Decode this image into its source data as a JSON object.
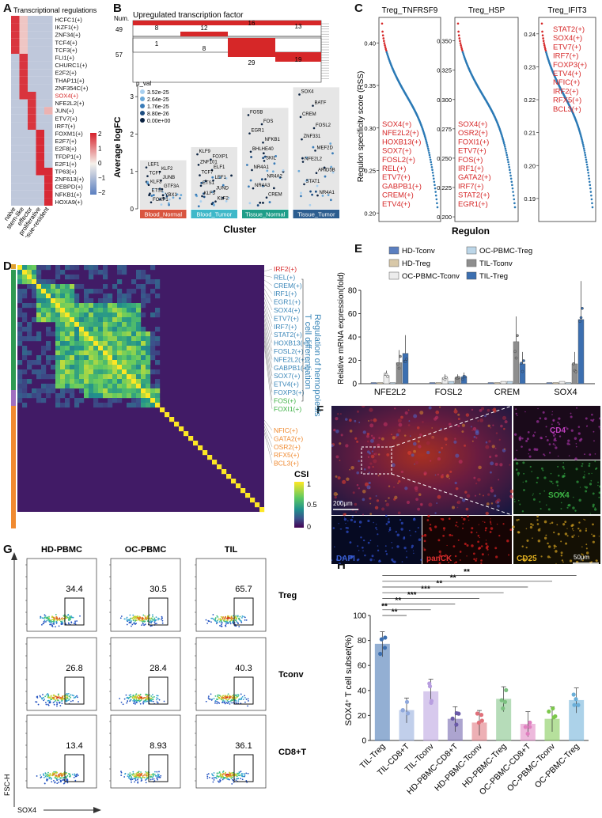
{
  "panels": {
    "A": "A",
    "B": "B",
    "C": "C",
    "D": "D",
    "E": "E",
    "F": "F",
    "G": "G",
    "H": "H"
  },
  "panelA": {
    "title": "Transcriptional regulations",
    "rows": [
      "HCFC1(+)",
      "IKZF1(+)",
      "ZNF34(+)",
      "TCF4(+)",
      "TCF3(+)",
      "FLI1(+)",
      "CHURC1(+)",
      "E2F2(+)",
      "THAP11(+)",
      "ZNF354C(+)",
      "SOX4(+)",
      "NFE2L2(+)",
      "JUN(+)",
      "ETV7(+)",
      "IRF7(+)",
      "FOXM1(+)",
      "E2F7(+)",
      "E2F8(+)",
      "TFDP1(+)",
      "E2F1(+)",
      "TP63(+)",
      "ZNF613(+)",
      "CEBPD(+)",
      "NFKB1(+)",
      "HOXA9(+)"
    ],
    "highlight_row": "SOX4(+)",
    "columns": [
      "naive",
      "stem-like",
      "effector",
      "proliferative",
      "tissue-resident"
    ],
    "legend_ticks": [
      "2",
      "1",
      "0",
      "−1",
      "−2"
    ],
    "colors": {
      "high": "#d6202b",
      "mid": "#f5f0ea",
      "low": "#5b7fc0",
      "highlight": "#d62728"
    }
  },
  "panelB": {
    "title": "Upregulated transcription factor",
    "num_label": "Num.",
    "upset_counts": [
      "8",
      "12",
      "16",
      "13",
      "1",
      "8",
      "29",
      "19"
    ],
    "row_counts": [
      "49",
      "57"
    ],
    "legend_title": "p_val",
    "legend_values": [
      "3.52e-25",
      "2.64e-25",
      "1.76e-25",
      "8.80e-26",
      "0.00e+00"
    ],
    "ylabel": "Average logFC",
    "xlabel": "Cluster",
    "yticks": [
      "0",
      "1",
      "2",
      "3"
    ],
    "clusters": [
      "Blood_Normal",
      "Blood_Tumor",
      "Tissue_Normal",
      "Tissue_Tumor"
    ],
    "cluster_colors": [
      "#d9553f",
      "#3fb8c9",
      "#1f9e89",
      "#2c5d8f"
    ],
    "genes": {
      "c1": [
        "LEF1",
        "KLF2",
        "TCF7",
        "JUNB",
        "KLF3",
        "GTF3A",
        "ETS1",
        "YBX1",
        "FOXP1"
      ],
      "c2": [
        "KLF9",
        "FOXP1",
        "ZNF101",
        "ELF1",
        "TCF7",
        "LEF1",
        "ETS1",
        "JUND",
        "KLF3",
        "KLF2"
      ],
      "c3": [
        "FOSB",
        "FOS",
        "EGR1",
        "NFKB1",
        "BHLHE40",
        "SKIL",
        "NR4A1",
        "NR4A2",
        "NR4A3",
        "CREM"
      ],
      "c4": [
        "SOX4",
        "BATF",
        "CREM",
        "FOSL2",
        "ZNF331",
        "MEF2D",
        "NFE2L2",
        "ARID5B",
        "STAT1",
        "NR4A1"
      ]
    }
  },
  "panelC": {
    "ylabel": "Regulon specificity score (RSS)",
    "xlabel": "Regulon",
    "subplots": [
      {
        "title": "Treg_TNFRSF9",
        "yticks": [
          "0.40",
          "0.35",
          "0.30",
          "0.25",
          "0.20"
        ],
        "ymin": 0.19,
        "ymax": 0.43,
        "labels": [
          "SOX4(+)",
          "NFE2L2(+)",
          "HOXB13(+)",
          "SOX7(+)",
          "FOSL2(+)",
          "REL(+)",
          "ETV7(+)",
          "GABPB1(+)",
          "CREM(+)",
          "ETV4(+)"
        ]
      },
      {
        "title": "Treg_HSP",
        "yticks": [
          "0.350",
          "0.325",
          "0.300",
          "0.275",
          "0.250",
          "0.225",
          "0.200"
        ],
        "ymin": 0.196,
        "ymax": 0.37,
        "labels": [
          "SOX4(+)",
          "OSR2(+)",
          "FOXI1(+)",
          "ETV7(+)",
          "FOS(+)",
          "IRF1(+)",
          "GATA2(+)",
          "IRF7(+)",
          "STAT2(+)",
          "EGR1(+)"
        ]
      },
      {
        "title": "Treg_IFIT3",
        "yticks": [
          "0.24",
          "0.23",
          "0.22",
          "0.21",
          "0.20",
          "0.19"
        ],
        "ymin": 0.183,
        "ymax": 0.245,
        "labels": [
          "STAT2(+)",
          "SOX4(+)",
          "ETV7(+)",
          "IRF7(+)",
          "FOXP3(+)",
          "ETV4(+)",
          "NFIC(+)",
          "IRF2(+)",
          "RFX5(+)",
          "BCL3(+)"
        ]
      }
    ],
    "colors": {
      "point": "#2a79b5",
      "label": "#d62728"
    }
  },
  "panelD": {
    "labels_red": [
      "IRF2(+)"
    ],
    "labels_blue": [
      "REL(+)",
      "CREM(+)",
      "IRF1(+)",
      "EGR1(+)",
      "SOX4(+)",
      "ETV7(+)",
      "IRF7(+)",
      "STAT2(+)",
      "HOXB13(+)",
      "FOSL2(+)",
      "NFE2L2(+)",
      "GABPB1(+)",
      "SOX7(+)",
      "ETV4(+)",
      "FOXP3(+)"
    ],
    "labels_green": [
      "FOS(+)",
      "FOXI1(+)"
    ],
    "labels_orange": [
      "NFIC(+)",
      "GATA2(+)",
      "OSR2(+)",
      "RFX5(+)",
      "BCL3(+)"
    ],
    "side_text1": "T cell differentiation",
    "side_text2": "Regulation of hemopoiesis",
    "legend_title": "CSI",
    "legend_ticks": [
      "1",
      "0.5",
      "0"
    ]
  },
  "panelE": {
    "ylabel": "Relative mRNA expression(fold)",
    "legend": [
      "HD-Tconv",
      "HD-Treg",
      "OC-PBMC-Tconv",
      "OC-PBMC-Treg",
      "TIL-Tconv",
      "TIL-Treg"
    ],
    "colors": [
      "#5b7fc0",
      "#d8c8a8",
      "#ececec",
      "#bcd6e8",
      "#8e8e8e",
      "#3c6fb0"
    ],
    "yticks": [
      "0",
      "20",
      "40",
      "60",
      "80"
    ],
    "ylim": [
      0,
      80
    ],
    "categories": [
      "NFE2L2",
      "FOSL2",
      "CREM",
      "SOX4"
    ],
    "series": [
      {
        "name": "HD-Tconv",
        "values": [
          1,
          1,
          1,
          1
        ]
      },
      {
        "name": "HD-Treg",
        "values": [
          1,
          1,
          1,
          1
        ]
      },
      {
        "name": "OC-PBMC-Tconv",
        "values": [
          7,
          5,
          2,
          2
        ]
      },
      {
        "name": "OC-PBMC-Treg",
        "values": [
          1,
          2,
          2,
          1
        ]
      },
      {
        "name": "TIL-Tconv",
        "values": [
          18,
          5,
          36,
          17
        ]
      },
      {
        "name": "TIL-Treg",
        "values": [
          26,
          6,
          17,
          55
        ]
      }
    ]
  },
  "panelF": {
    "scale1": "200μm",
    "scale2": "50μm",
    "channels": {
      "cd4": "CD4",
      "sox4": "SOX4",
      "dapi": "DAPI",
      "panck": "panCK",
      "cd25": "CD25"
    },
    "colors": {
      "cd4": "#c040c0",
      "sox4": "#3cb043",
      "dapi": "#3a5fd0",
      "panck": "#e03030",
      "cd25": "#e0b020"
    }
  },
  "panelG": {
    "columns": [
      "HD-PBMC",
      "OC-PBMC",
      "TIL"
    ],
    "rows": [
      "Treg",
      "Tconv",
      "CD8+T"
    ],
    "values": [
      [
        "34.4",
        "30.5",
        "65.7"
      ],
      [
        "26.8",
        "28.4",
        "40.3"
      ],
      [
        "13.4",
        "8.93",
        "36.1"
      ]
    ],
    "ylabel": "FSC-H",
    "xlabel": "SOX4"
  },
  "panelH": {
    "ylabel_main": "SOX4",
    "ylabel_sup": "+",
    "ylabel_rest": " T cell subset(%)",
    "yticks": [
      "0",
      "20",
      "40",
      "60",
      "80",
      "100"
    ],
    "ylim": [
      0,
      100
    ],
    "categories": [
      "TIL-Treg",
      "TIL-CD8+T",
      "TIL-Tconv",
      "HD-PBMC-CD8+T",
      "HD-PBMC-Tconv",
      "HD-PBMC-Treg",
      "OC-PBMC-CD8+T",
      "OC-PBMC-Tconv",
      "OC-PBMC-Treg"
    ],
    "values": [
      77,
      24,
      39,
      17,
      14,
      33,
      13,
      17,
      32
    ],
    "colors": [
      "#3c6fb0",
      "#8fa8dc",
      "#b89ee0",
      "#6a5aa8",
      "#e0707a",
      "#7cc080",
      "#e080c0",
      "#7cc84c",
      "#6aaed8"
    ],
    "significance": [
      "**",
      "**",
      "**",
      "***",
      "***",
      "**",
      "**",
      "**"
    ]
  }
}
